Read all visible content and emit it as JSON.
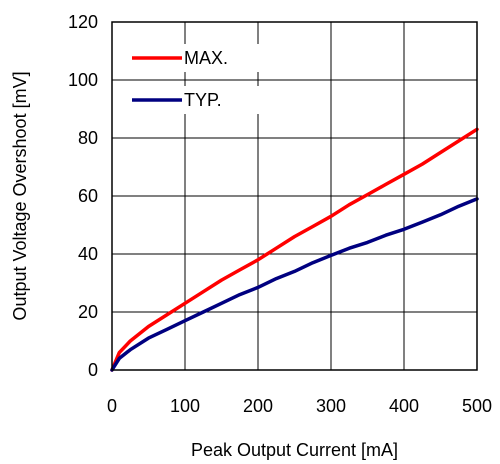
{
  "chart_data": {
    "type": "line",
    "title": "",
    "xlabel": "Peak Output Current [mA]",
    "ylabel": "Output Voltage Overshoot [mV]",
    "xlim": [
      0,
      500
    ],
    "ylim": [
      0,
      120
    ],
    "x_ticks": [
      "0",
      "100",
      "200",
      "300",
      "400",
      "500"
    ],
    "y_ticks": [
      "0",
      "20",
      "40",
      "60",
      "80",
      "100",
      "120"
    ],
    "grid": true,
    "legend_position": "top-left",
    "series": [
      {
        "name": "MAX.",
        "color": "#ff0000",
        "x": [
          0,
          10,
          25,
          50,
          75,
          100,
          125,
          150,
          175,
          200,
          225,
          250,
          275,
          300,
          325,
          350,
          375,
          400,
          425,
          450,
          475,
          500
        ],
        "y": [
          0,
          6,
          10,
          15,
          19,
          23,
          27,
          31,
          34.5,
          38,
          42,
          46,
          49.5,
          53,
          57,
          60.5,
          64,
          67.5,
          71,
          75,
          79,
          83
        ]
      },
      {
        "name": "TYP.",
        "color": "#000080",
        "x": [
          0,
          10,
          25,
          50,
          75,
          100,
          125,
          150,
          175,
          200,
          225,
          250,
          275,
          300,
          325,
          350,
          375,
          400,
          425,
          450,
          475,
          500
        ],
        "y": [
          0,
          4,
          7,
          11,
          14,
          17,
          20,
          23,
          26,
          28.5,
          31.5,
          34,
          37,
          39.5,
          42,
          44,
          46.5,
          48.5,
          51,
          53.5,
          56.5,
          59
        ]
      }
    ]
  }
}
